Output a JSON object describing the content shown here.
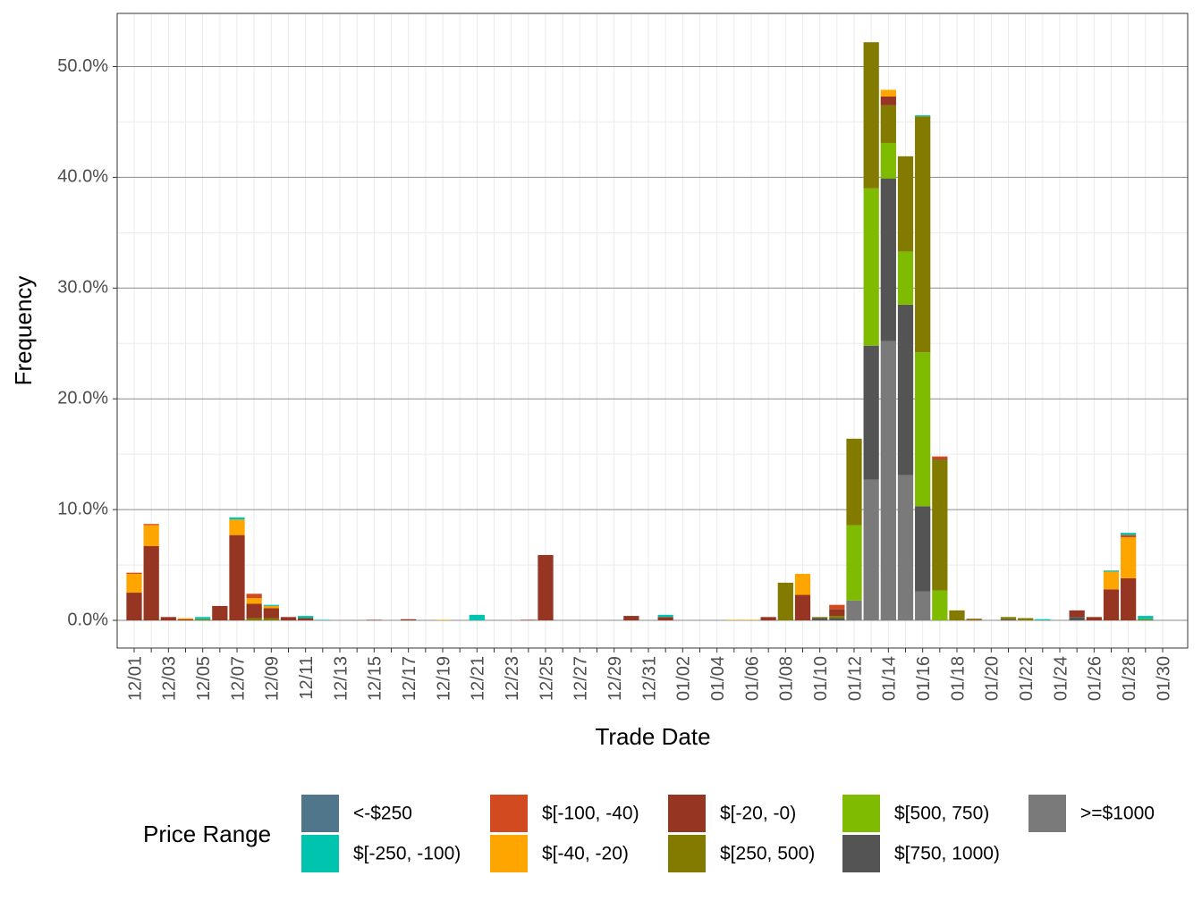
{
  "chart_data": {
    "type": "stacked_bar",
    "x_label": "Trade Date",
    "y_label": "Frequency",
    "legend_title": "Price Range",
    "categories": [
      "12/01",
      null,
      "12/03",
      null,
      "12/05",
      null,
      "12/07",
      null,
      "12/09",
      null,
      "12/11",
      null,
      "12/13",
      null,
      "12/15",
      null,
      "12/17",
      null,
      "12/19",
      null,
      "12/21",
      null,
      "12/23",
      null,
      "12/25",
      null,
      "12/27",
      null,
      "12/29",
      null,
      "12/31",
      null,
      "01/02",
      null,
      "01/04",
      null,
      "01/06",
      null,
      "01/08",
      null,
      "01/10",
      null,
      "01/12",
      null,
      "01/14",
      null,
      "01/16",
      null,
      "01/18",
      null,
      "01/20",
      null,
      "01/22",
      null,
      "01/24",
      null,
      "01/26",
      null,
      "01/28",
      null,
      "01/30"
    ],
    "series": [
      {
        "name": "<-$250",
        "color": "#4f768b",
        "values": [
          0,
          0,
          0,
          0,
          0,
          0,
          0,
          0,
          0,
          0,
          0,
          0,
          0,
          0,
          0,
          0,
          0,
          0,
          0,
          0,
          0,
          0,
          0,
          0,
          0,
          0,
          0,
          0,
          0,
          0,
          0,
          0,
          0,
          0,
          0,
          0,
          0,
          0,
          0,
          0,
          0,
          0,
          0,
          0,
          0,
          0,
          0,
          0,
          0,
          0,
          0,
          0,
          0,
          0,
          0,
          0,
          0,
          0,
          0,
          0,
          0
        ]
      },
      {
        "name": "$[-250, -100)",
        "color": "#00c4ae",
        "values": [
          0,
          0,
          0,
          0,
          0.2,
          0,
          0.2,
          0,
          0.1,
          0,
          0.2,
          0.05,
          0,
          0,
          0,
          0,
          0,
          0,
          0,
          0,
          0.5,
          0,
          0,
          0,
          0,
          0,
          0,
          0,
          0,
          0,
          0,
          0.2,
          0,
          0,
          0,
          0,
          0,
          0,
          0,
          0,
          0,
          0,
          0,
          0,
          0,
          0,
          0.1,
          0,
          0,
          0,
          0,
          0,
          0,
          0.1,
          0,
          0,
          0,
          0.1,
          0.2,
          0.3,
          0
        ]
      },
      {
        "name": "$[-100, -40)",
        "color": "#d24a1f",
        "values": [
          0.1,
          0.1,
          0,
          0,
          0,
          0,
          0,
          0.4,
          0,
          0,
          0,
          0,
          0,
          0,
          0,
          0,
          0,
          0,
          0,
          0,
          0,
          0,
          0,
          0,
          0,
          0,
          0,
          0,
          0,
          0,
          0,
          0,
          0,
          0,
          0,
          0,
          0,
          0,
          0,
          0,
          0,
          0.4,
          0,
          0,
          0,
          0,
          0,
          0.2,
          0,
          0,
          0,
          0,
          0,
          0,
          0,
          0,
          0,
          0,
          0.2,
          0,
          0
        ]
      },
      {
        "name": "$[-40, -20)",
        "color": "#ffa500",
        "values": [
          1.7,
          1.9,
          0,
          0.1,
          0,
          0,
          1.4,
          0.5,
          0.2,
          0,
          0,
          0,
          0,
          0,
          0,
          0,
          0,
          0,
          0.05,
          0,
          0,
          0,
          0,
          0,
          0,
          0,
          0,
          0,
          0,
          0,
          0,
          0,
          0,
          0,
          0,
          0.05,
          0.05,
          0,
          0,
          1.9,
          0,
          0,
          0,
          0,
          0.6,
          0,
          0,
          0,
          0,
          0,
          0,
          0,
          0,
          0,
          0,
          0,
          0,
          1.6,
          3.7,
          0,
          0
        ]
      },
      {
        "name": "$[-20, -0)",
        "color": "#963522",
        "values": [
          2.5,
          6.7,
          0.3,
          0.1,
          0,
          1.3,
          7.7,
          1.3,
          0.9,
          0.3,
          0.2,
          0,
          0,
          0,
          0.05,
          0,
          0.1,
          0,
          0,
          0,
          0,
          0,
          0,
          0.05,
          5.9,
          0,
          0,
          0,
          0,
          0.4,
          0,
          0.3,
          0,
          0,
          0,
          0,
          0,
          0.3,
          0,
          2.3,
          0,
          0.6,
          0,
          0,
          0.8,
          0,
          0,
          0.1,
          0,
          0.05,
          0,
          0,
          0,
          0,
          0,
          0.6,
          0.3,
          2.8,
          3.8,
          0,
          0
        ]
      },
      {
        "name": "$[250, 500)",
        "color": "#837a00",
        "values": [
          0,
          0,
          0,
          0,
          0.1,
          0,
          0,
          0.2,
          0.2,
          0,
          0,
          0,
          0,
          0,
          0,
          0,
          0,
          0,
          0,
          0,
          0,
          0,
          0,
          0,
          0,
          0,
          0,
          0,
          0,
          0,
          0,
          0,
          0,
          0,
          0,
          0,
          0,
          0,
          3.4,
          0,
          0.1,
          0.2,
          7.8,
          13.2,
          3.4,
          8.6,
          21.3,
          11.8,
          0.9,
          0.1,
          0,
          0.2,
          0.2,
          0,
          0,
          0,
          0,
          0,
          0,
          0.1,
          0
        ]
      },
      {
        "name": "$[500, 750)",
        "color": "#7fbb00",
        "values": [
          0,
          0,
          0,
          0,
          0,
          0,
          0,
          0,
          0,
          0,
          0,
          0,
          0,
          0,
          0,
          0,
          0,
          0,
          0,
          0,
          0,
          0,
          0,
          0,
          0,
          0,
          0,
          0,
          0,
          0,
          0,
          0,
          0,
          0,
          0,
          0,
          0,
          0,
          0,
          0,
          0,
          0,
          6.8,
          14.2,
          3.2,
          4.8,
          13.9,
          2.7,
          0,
          0,
          0,
          0,
          0,
          0,
          0,
          0,
          0,
          0,
          0,
          0,
          0
        ]
      },
      {
        "name": "$[750, 1000)",
        "color": "#545454",
        "values": [
          0,
          0,
          0,
          0,
          0,
          0,
          0,
          0,
          0,
          0,
          0,
          0,
          0,
          0,
          0,
          0,
          0,
          0,
          0,
          0,
          0,
          0,
          0,
          0,
          0,
          0,
          0,
          0,
          0,
          0,
          0,
          0,
          0,
          0,
          0,
          0,
          0,
          0,
          0,
          0,
          0.2,
          0.2,
          0,
          12.1,
          14.7,
          15.4,
          7.7,
          0,
          0,
          0,
          0,
          0.1,
          0,
          0,
          0,
          0.3,
          0,
          0,
          0,
          0,
          0
        ]
      },
      {
        "name": ">=$1000",
        "color": "#7a7a7a",
        "values": [
          0,
          0,
          0,
          0,
          0,
          0,
          0,
          0,
          0,
          0,
          0,
          0,
          0,
          0,
          0,
          0,
          0,
          0,
          0,
          0,
          0,
          0,
          0,
          0,
          0,
          0,
          0,
          0,
          0,
          0,
          0,
          0,
          0,
          0,
          0,
          0,
          0,
          0,
          0,
          0,
          0,
          0,
          1.8,
          12.7,
          25.2,
          13.1,
          2.6,
          0,
          0,
          0,
          0,
          0,
          0,
          0,
          0,
          0,
          0,
          0,
          0,
          0,
          0
        ]
      }
    ],
    "ylim": [
      -2.5,
      54.8
    ],
    "yticks": [
      {
        "value": 0,
        "label": "0.0%"
      },
      {
        "value": 10,
        "label": "10.0%"
      },
      {
        "value": 20,
        "label": "20.0%"
      },
      {
        "value": 30,
        "label": "30.0%"
      },
      {
        "value": 40,
        "label": "40.0%"
      },
      {
        "value": 50,
        "label": "50.0%"
      }
    ],
    "grid": true,
    "legend_position": "bottom"
  }
}
